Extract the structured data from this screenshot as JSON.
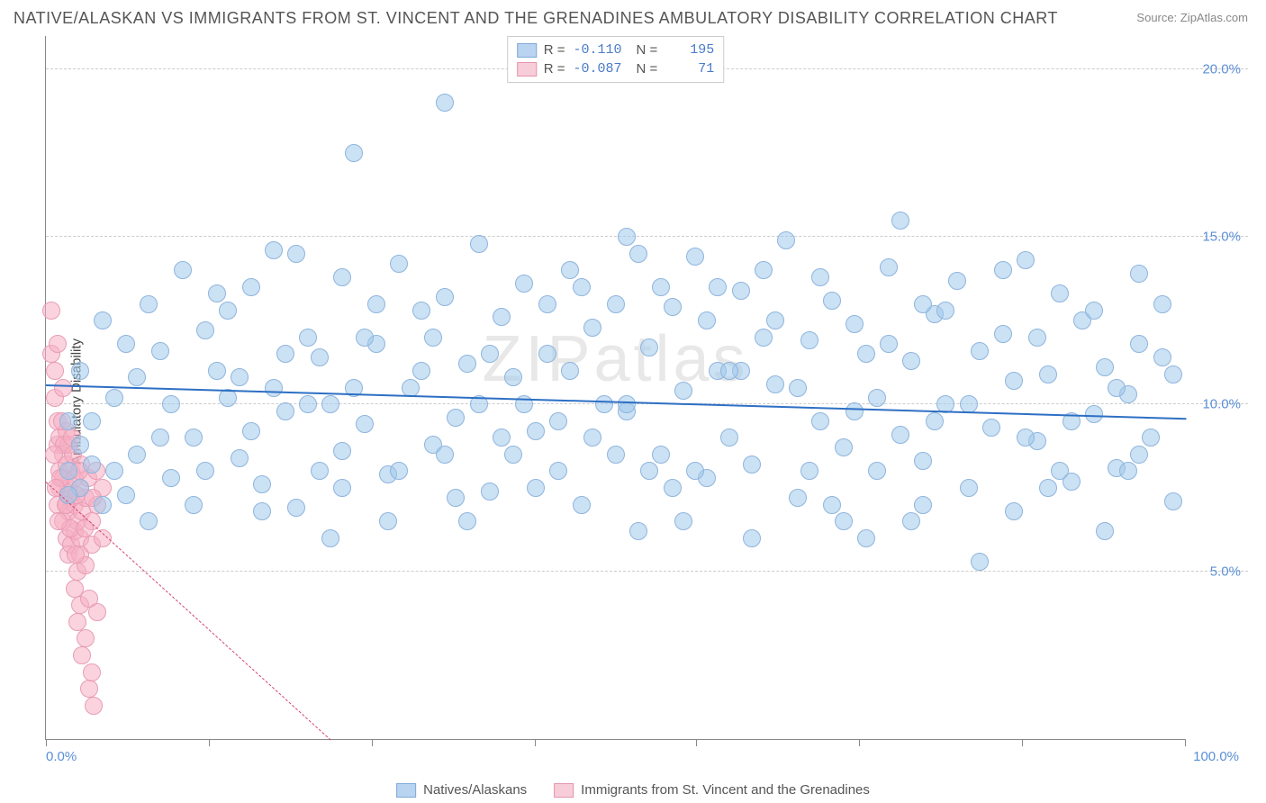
{
  "title": "NATIVE/ALASKAN VS IMMIGRANTS FROM ST. VINCENT AND THE GRENADINES AMBULATORY DISABILITY CORRELATION CHART",
  "source_label": "Source:",
  "source_name": "ZipAtlas.com",
  "watermark": "ZIPatlas",
  "ylabel": "Ambulatory Disability",
  "chart": {
    "type": "scatter",
    "xlim": [
      0,
      100
    ],
    "ylim": [
      0,
      21
    ],
    "x_ticks": [
      0,
      14.3,
      28.6,
      42.9,
      57.1,
      71.4,
      85.7,
      100
    ],
    "x_tick_labels": {
      "0": "0.0%",
      "100": "100.0%"
    },
    "y_gridlines": [
      5,
      10,
      15,
      20
    ],
    "y_tick_labels": {
      "5": "5.0%",
      "10": "10.0%",
      "15": "15.0%",
      "20": "20.0%"
    },
    "background_color": "#ffffff",
    "grid_color": "#cccccc",
    "axis_color": "#888888",
    "tick_label_color": "#5b8fd6"
  },
  "series": [
    {
      "name": "Natives/Alaskans",
      "swatch_fill": "#b9d4f1",
      "swatch_border": "#7fa8d8",
      "point_fill": "rgba(160,200,235,0.55)",
      "point_border": "#8fb5dd",
      "point_radius": 10,
      "trend_color": "#2d6fc4",
      "trend_width": 2.5,
      "trend_dash": "solid",
      "r_label": "R =",
      "r_value": "-0.110",
      "n_label": "N =",
      "n_value": "195",
      "trend": {
        "x1": 0,
        "y1": 10.6,
        "x2": 100,
        "y2": 9.6
      },
      "points": [
        [
          4,
          8.2
        ],
        [
          5,
          12.5
        ],
        [
          6,
          8.0
        ],
        [
          7,
          7.3
        ],
        [
          8,
          10.8
        ],
        [
          9,
          13.0
        ],
        [
          10,
          11.6
        ],
        [
          11,
          7.8
        ],
        [
          12,
          14.0
        ],
        [
          13,
          9.0
        ],
        [
          14,
          12.2
        ],
        [
          15,
          11.0
        ],
        [
          16,
          10.2
        ],
        [
          17,
          8.4
        ],
        [
          18,
          13.5
        ],
        [
          19,
          7.6
        ],
        [
          20,
          14.6
        ],
        [
          21,
          9.8
        ],
        [
          22,
          6.9
        ],
        [
          23,
          12.0
        ],
        [
          24,
          11.4
        ],
        [
          25,
          10.0
        ],
        [
          26,
          13.8
        ],
        [
          26,
          8.6
        ],
        [
          27,
          17.5
        ],
        [
          28,
          9.4
        ],
        [
          29,
          11.8
        ],
        [
          30,
          7.9
        ],
        [
          31,
          14.2
        ],
        [
          32,
          10.5
        ],
        [
          33,
          12.8
        ],
        [
          34,
          8.8
        ],
        [
          35,
          13.2
        ],
        [
          35,
          19.0
        ],
        [
          36,
          9.6
        ],
        [
          37,
          11.2
        ],
        [
          38,
          14.8
        ],
        [
          39,
          7.4
        ],
        [
          40,
          12.6
        ],
        [
          41,
          10.8
        ],
        [
          42,
          13.6
        ],
        [
          43,
          9.2
        ],
        [
          44,
          11.5
        ],
        [
          45,
          8.0
        ],
        [
          46,
          14.0
        ],
        [
          47,
          7.0
        ],
        [
          48,
          12.3
        ],
        [
          49,
          10.0
        ],
        [
          50,
          13.0
        ],
        [
          51,
          9.8
        ],
        [
          51,
          15.0
        ],
        [
          52,
          6.2
        ],
        [
          53,
          11.7
        ],
        [
          54,
          8.5
        ],
        [
          55,
          12.9
        ],
        [
          56,
          10.4
        ],
        [
          57,
          14.4
        ],
        [
          58,
          7.8
        ],
        [
          59,
          11.0
        ],
        [
          60,
          9.0
        ],
        [
          61,
          13.4
        ],
        [
          62,
          8.2
        ],
        [
          63,
          12.0
        ],
        [
          64,
          10.6
        ],
        [
          65,
          14.9
        ],
        [
          66,
          7.2
        ],
        [
          67,
          11.9
        ],
        [
          68,
          9.5
        ],
        [
          69,
          13.1
        ],
        [
          70,
          8.7
        ],
        [
          71,
          12.4
        ],
        [
          72,
          6.0
        ],
        [
          73,
          10.2
        ],
        [
          74,
          14.1
        ],
        [
          75,
          9.1
        ],
        [
          75,
          15.5
        ],
        [
          76,
          11.3
        ],
        [
          77,
          8.3
        ],
        [
          78,
          12.7
        ],
        [
          79,
          10.0
        ],
        [
          80,
          13.7
        ],
        [
          81,
          7.5
        ],
        [
          82,
          11.6
        ],
        [
          83,
          9.3
        ],
        [
          84,
          12.1
        ],
        [
          85,
          6.8
        ],
        [
          86,
          14.3
        ],
        [
          87,
          8.9
        ],
        [
          88,
          10.9
        ],
        [
          89,
          13.3
        ],
        [
          90,
          7.7
        ],
        [
          91,
          12.5
        ],
        [
          92,
          9.7
        ],
        [
          93,
          11.1
        ],
        [
          94,
          8.1
        ],
        [
          95,
          10.3
        ],
        [
          96,
          13.9
        ],
        [
          96,
          8.5
        ],
        [
          97,
          9.0
        ],
        [
          98,
          11.4
        ],
        [
          99,
          7.1
        ],
        [
          99,
          10.9
        ],
        [
          3,
          7.5
        ],
        [
          3,
          8.8
        ],
        [
          4,
          9.5
        ],
        [
          5,
          7.0
        ],
        [
          6,
          10.2
        ],
        [
          7,
          11.8
        ],
        [
          8,
          8.5
        ],
        [
          2,
          9.5
        ],
        [
          15,
          13.3
        ],
        [
          22,
          14.5
        ],
        [
          30,
          6.5
        ],
        [
          38,
          10.0
        ],
        [
          44,
          13.0
        ],
        [
          52,
          14.5
        ],
        [
          58,
          12.5
        ],
        [
          66,
          10.5
        ],
        [
          72,
          11.5
        ],
        [
          82,
          5.3
        ],
        [
          17,
          10.8
        ],
        [
          24,
          8.0
        ],
        [
          33,
          11.0
        ],
        [
          41,
          8.5
        ],
        [
          48,
          9.0
        ],
        [
          55,
          7.5
        ],
        [
          63,
          14.0
        ],
        [
          70,
          6.5
        ],
        [
          77,
          13.0
        ],
        [
          85,
          10.7
        ],
        [
          92,
          12.8
        ],
        [
          19,
          6.8
        ],
        [
          27,
          10.5
        ],
        [
          36,
          7.2
        ],
        [
          45,
          9.5
        ],
        [
          53,
          8.0
        ],
        [
          61,
          11.0
        ],
        [
          69,
          7.0
        ],
        [
          78,
          9.5
        ],
        [
          87,
          12.0
        ],
        [
          95,
          8.0
        ],
        [
          14,
          8.0
        ],
        [
          21,
          11.5
        ],
        [
          29,
          13.0
        ],
        [
          37,
          6.5
        ],
        [
          46,
          11.0
        ],
        [
          54,
          13.5
        ],
        [
          62,
          6.0
        ],
        [
          71,
          9.8
        ],
        [
          79,
          12.8
        ],
        [
          88,
          7.5
        ],
        [
          96,
          11.8
        ],
        [
          11,
          10.0
        ],
        [
          18,
          9.2
        ],
        [
          26,
          7.5
        ],
        [
          34,
          12.0
        ],
        [
          42,
          10.0
        ],
        [
          50,
          8.5
        ],
        [
          59,
          13.5
        ],
        [
          67,
          8.0
        ],
        [
          76,
          6.5
        ],
        [
          84,
          14.0
        ],
        [
          93,
          6.2
        ],
        [
          9,
          6.5
        ],
        [
          16,
          12.8
        ],
        [
          23,
          10.0
        ],
        [
          31,
          8.0
        ],
        [
          39,
          11.5
        ],
        [
          47,
          13.5
        ],
        [
          56,
          6.5
        ],
        [
          64,
          12.5
        ],
        [
          73,
          8.0
        ],
        [
          81,
          10.0
        ],
        [
          90,
          9.5
        ],
        [
          98,
          13.0
        ],
        [
          13,
          7.0
        ],
        [
          20,
          10.5
        ],
        [
          28,
          12.0
        ],
        [
          35,
          8.5
        ],
        [
          43,
          7.5
        ],
        [
          51,
          10.0
        ],
        [
          60,
          11.0
        ],
        [
          68,
          13.8
        ],
        [
          77,
          7.0
        ],
        [
          86,
          9.0
        ],
        [
          94,
          10.5
        ],
        [
          10,
          9.0
        ],
        [
          25,
          6.0
        ],
        [
          40,
          9.0
        ],
        [
          57,
          8.0
        ],
        [
          74,
          11.8
        ],
        [
          89,
          8.0
        ],
        [
          2,
          8.0
        ],
        [
          2,
          7.3
        ],
        [
          3,
          11.0
        ]
      ]
    },
    {
      "name": "Immigrants from St. Vincent and the Grenadines",
      "swatch_fill": "#f7cdd9",
      "swatch_border": "#e594ad",
      "point_fill": "rgba(245,175,195,0.55)",
      "point_border": "#e89db5",
      "point_radius": 10,
      "trend_color": "#d6456b",
      "trend_width": 1.5,
      "trend_dash": "dashed",
      "r_label": "R =",
      "r_value": "-0.087",
      "n_label": "N =",
      "n_value": "71",
      "trend": {
        "x1": 0,
        "y1": 7.7,
        "x2": 25,
        "y2": 0
      },
      "points": [
        [
          0.5,
          12.8
        ],
        [
          0.5,
          11.5
        ],
        [
          0.8,
          10.2
        ],
        [
          0.8,
          11.0
        ],
        [
          1.0,
          9.5
        ],
        [
          1.0,
          8.8
        ],
        [
          1.0,
          11.8
        ],
        [
          1.2,
          8.0
        ],
        [
          1.2,
          9.0
        ],
        [
          1.2,
          7.5
        ],
        [
          1.5,
          10.5
        ],
        [
          1.5,
          7.8
        ],
        [
          1.5,
          6.5
        ],
        [
          1.5,
          8.5
        ],
        [
          1.8,
          7.0
        ],
        [
          1.8,
          9.2
        ],
        [
          1.8,
          6.0
        ],
        [
          1.8,
          8.2
        ],
        [
          2.0,
          5.5
        ],
        [
          2.0,
          7.5
        ],
        [
          2.0,
          8.8
        ],
        [
          2.0,
          6.8
        ],
        [
          2.2,
          7.2
        ],
        [
          2.2,
          5.8
        ],
        [
          2.2,
          8.0
        ],
        [
          2.5,
          6.2
        ],
        [
          2.5,
          4.5
        ],
        [
          2.5,
          7.0
        ],
        [
          2.5,
          7.8
        ],
        [
          2.8,
          5.0
        ],
        [
          2.8,
          6.5
        ],
        [
          2.8,
          3.5
        ],
        [
          3.0,
          7.5
        ],
        [
          3.0,
          5.5
        ],
        [
          3.0,
          4.0
        ],
        [
          3.0,
          6.0
        ],
        [
          3.2,
          2.5
        ],
        [
          3.2,
          6.8
        ],
        [
          3.5,
          3.0
        ],
        [
          3.5,
          5.2
        ],
        [
          3.5,
          7.2
        ],
        [
          3.8,
          4.2
        ],
        [
          3.8,
          1.5
        ],
        [
          4.0,
          2.0
        ],
        [
          4.0,
          5.8
        ],
        [
          4.0,
          6.5
        ],
        [
          4.2,
          1.0
        ],
        [
          4.5,
          3.8
        ],
        [
          4.5,
          7.0
        ],
        [
          5.0,
          6.0
        ],
        [
          5.0,
          7.5
        ],
        [
          1.0,
          7.0
        ],
        [
          1.3,
          7.8
        ],
        [
          1.6,
          8.8
        ],
        [
          1.9,
          7.3
        ],
        [
          2.1,
          6.3
        ],
        [
          2.4,
          8.5
        ],
        [
          2.7,
          7.3
        ],
        [
          3.1,
          8.2
        ],
        [
          3.4,
          6.3
        ],
        [
          3.7,
          7.8
        ],
        [
          4.1,
          7.2
        ],
        [
          4.4,
          8.0
        ],
        [
          0.7,
          8.5
        ],
        [
          0.9,
          7.5
        ],
        [
          1.1,
          6.5
        ],
        [
          1.4,
          9.5
        ],
        [
          1.7,
          7.0
        ],
        [
          2.3,
          9.0
        ],
        [
          2.6,
          5.5
        ],
        [
          2.9,
          8.0
        ]
      ]
    }
  ],
  "legend_bottom": [
    {
      "label": "Natives/Alaskans",
      "fill": "#b9d4f1",
      "border": "#7fa8d8"
    },
    {
      "label": "Immigrants from St. Vincent and the Grenadines",
      "fill": "#f7cdd9",
      "border": "#e594ad"
    }
  ]
}
